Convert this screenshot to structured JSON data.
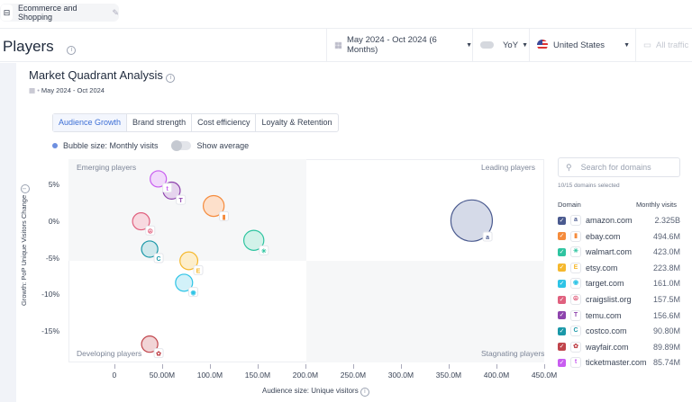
{
  "top_chip": {
    "label": "Ecommerce and Shopping"
  },
  "header": {
    "title": "Players",
    "date_range": "May 2024 - Oct 2024 (6 Months)",
    "compare": "YoY",
    "country": "United States",
    "traffic": "All traffic"
  },
  "card": {
    "title": "Market Quadrant Analysis",
    "subtitle": "May 2024 - Oct 2024",
    "tabs": [
      {
        "label": "Audience Growth",
        "active": true
      },
      {
        "label": "Brand strength"
      },
      {
        "label": "Cost efficiency"
      },
      {
        "label": "Loyalty & Retention"
      }
    ],
    "bubble_size_label": "Bubble size: Monthly visits",
    "show_average_label": "Show average"
  },
  "chart_data": {
    "type": "scatter",
    "xlabel": "Audience size: Unique visitors",
    "ylabel": "Growth: PoP Unique Visitors Change",
    "xlim": [
      -48,
      450
    ],
    "ylim": [
      -19.3,
      8.5
    ],
    "x_units": "M visitors",
    "y_units": "%",
    "x_ticks": [
      {
        "v": 0,
        "label": "0"
      },
      {
        "v": 50,
        "label": "50.00M"
      },
      {
        "v": 100,
        "label": "100.0M"
      },
      {
        "v": 150,
        "label": "150.0M"
      },
      {
        "v": 200,
        "label": "200.0M"
      },
      {
        "v": 250,
        "label": "250.0M"
      },
      {
        "v": 300,
        "label": "300.0M"
      },
      {
        "v": 350,
        "label": "350.0M"
      },
      {
        "v": 400,
        "label": "400.0M"
      },
      {
        "v": 450,
        "label": "450.0M"
      }
    ],
    "y_ticks": [
      {
        "v": 5,
        "label": "5%"
      },
      {
        "v": 0,
        "label": "0%"
      },
      {
        "v": -5,
        "label": "-5%"
      },
      {
        "v": -10,
        "label": "-10%"
      },
      {
        "v": -15,
        "label": "-15%"
      }
    ],
    "quadrant_split": {
      "x": 201,
      "y": -5.4
    },
    "quadrants": {
      "tl": "Emerging players",
      "tr": "Leading players",
      "bl": "Developing players",
      "br": "Stagnating players"
    },
    "points": [
      {
        "domain": "amazon.com",
        "x": 374,
        "y": 0.1,
        "visits": 2325,
        "color": "#4a5a8f",
        "fill": "#d5dae8",
        "glyph": "a"
      },
      {
        "domain": "ebay.com",
        "x": 104,
        "y": 2.1,
        "visits": 494.6,
        "color": "#f58b3c",
        "fill": "#fde0cb",
        "glyph": "▮"
      },
      {
        "domain": "walmart.com",
        "x": 146,
        "y": -2.6,
        "visits": 423.0,
        "color": "#2ec4a0",
        "fill": "#d2f2e9",
        "glyph": "✳"
      },
      {
        "domain": "etsy.com",
        "x": 78,
        "y": -5.4,
        "visits": 223.8,
        "color": "#f5b82e",
        "fill": "#fdeecb",
        "glyph": "E"
      },
      {
        "domain": "target.com",
        "x": 73,
        "y": -8.4,
        "visits": 161.0,
        "color": "#2ec4e6",
        "fill": "#d2f1f9",
        "glyph": "◉"
      },
      {
        "domain": "craigslist.org",
        "x": 28,
        "y": 0,
        "visits": 157.5,
        "color": "#e0607e",
        "fill": "#f8d9e0",
        "glyph": "☮"
      },
      {
        "domain": "temu.com",
        "x": 60,
        "y": 4.2,
        "visits": 156.6,
        "color": "#8e44ad",
        "fill": "#e6d4ee",
        "glyph": "T"
      },
      {
        "domain": "costco.com",
        "x": 37,
        "y": -3.8,
        "visits": 90.8,
        "color": "#1a98a8",
        "fill": "#cfe8ec",
        "glyph": "C"
      },
      {
        "domain": "wayfair.com",
        "x": 37,
        "y": -16.8,
        "visits": 89.89,
        "color": "#c0444b",
        "fill": "#f1d4d6",
        "glyph": "✿"
      },
      {
        "domain": "ticketmaster.com",
        "x": 46,
        "y": 5.8,
        "visits": 85.74,
        "color": "#c85df0",
        "fill": "#f1d9fb",
        "glyph": "t"
      }
    ]
  },
  "panel": {
    "search_placeholder": "Search for domains",
    "selected": "10/15 domains selected",
    "col_domain": "Domain",
    "col_visits": "Monthly visits",
    "rows": [
      {
        "domain": "amazon.com",
        "visits": "2.325B"
      },
      {
        "domain": "ebay.com",
        "visits": "494.6M"
      },
      {
        "domain": "walmart.com",
        "visits": "423.0M"
      },
      {
        "domain": "etsy.com",
        "visits": "223.8M"
      },
      {
        "domain": "target.com",
        "visits": "161.0M"
      },
      {
        "domain": "craigslist.org",
        "visits": "157.5M"
      },
      {
        "domain": "temu.com",
        "visits": "156.6M"
      },
      {
        "domain": "costco.com",
        "visits": "90.80M"
      },
      {
        "domain": "wayfair.com",
        "visits": "89.89M"
      },
      {
        "domain": "ticketmaster.com",
        "visits": "85.74M"
      }
    ]
  }
}
